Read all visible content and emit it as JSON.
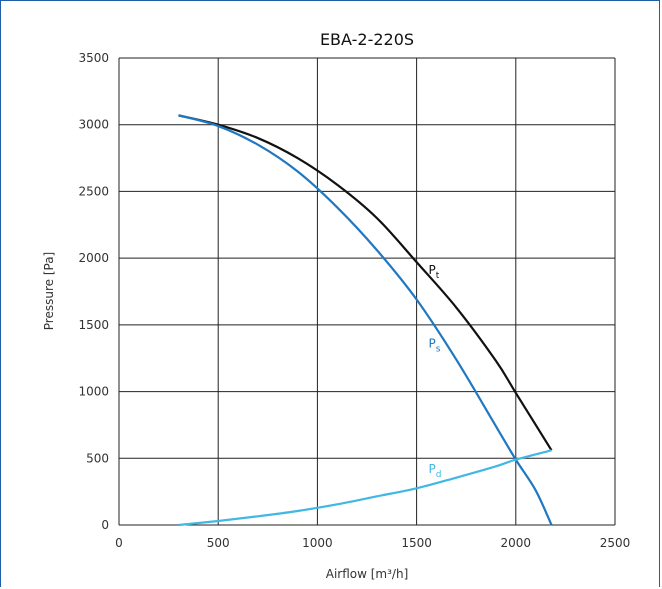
{
  "chart_data": {
    "type": "line",
    "title": "EBA-2-220S",
    "xlabel": "Airflow [m³/h]",
    "ylabel": "Pressure [Pa]",
    "xlim": [
      0,
      2500
    ],
    "ylim": [
      0,
      3500
    ],
    "xticks": [
      "0",
      "500",
      "1000",
      "1500",
      "2000",
      "2500"
    ],
    "yticks": [
      "0",
      "500",
      "1000",
      "1500",
      "2000",
      "2500",
      "3000",
      "3500"
    ],
    "xtick_values": [
      0,
      500,
      1000,
      1500,
      2000,
      2500
    ],
    "ytick_values": [
      0,
      500,
      1000,
      1500,
      2000,
      2500,
      3000,
      3500
    ],
    "grid": true,
    "series": [
      {
        "name": "Pt",
        "label_main": "P",
        "label_sub": "t",
        "color": "#111111",
        "x": [
          300,
          500,
          700,
          900,
          1100,
          1300,
          1500,
          1700,
          1900,
          2000,
          2180
        ],
        "y": [
          3070,
          3000,
          2900,
          2750,
          2550,
          2300,
          1970,
          1630,
          1230,
          990,
          560
        ]
      },
      {
        "name": "Ps",
        "label_main": "P",
        "label_sub": "s",
        "color": "#1f78c1",
        "x": [
          300,
          500,
          700,
          900,
          1100,
          1300,
          1500,
          1700,
          1900,
          2000,
          2100,
          2180
        ],
        "y": [
          3070,
          2990,
          2850,
          2650,
          2380,
          2060,
          1690,
          1240,
          740,
          490,
          260,
          0
        ]
      },
      {
        "name": "Pd",
        "label_main": "P",
        "label_sub": "d",
        "color": "#41b8e4",
        "x": [
          300,
          500,
          700,
          900,
          1100,
          1300,
          1500,
          1700,
          1900,
          2000,
          2180
        ],
        "y": [
          0,
          30,
          65,
          105,
          155,
          215,
          275,
          355,
          440,
          490,
          560
        ]
      }
    ]
  }
}
